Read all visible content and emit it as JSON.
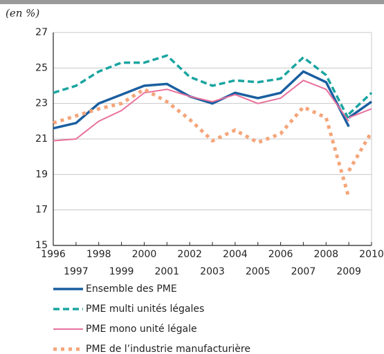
{
  "chart_data": {
    "type": "line",
    "unit_label": "(en %)",
    "x": [
      1996,
      1997,
      1998,
      1999,
      2000,
      2001,
      2002,
      2003,
      2004,
      2005,
      2006,
      2007,
      2008,
      2009,
      2009,
      2009,
      2010
    ],
    "series": [
      {
        "name": "Ensemble des PME",
        "color": "#1a5fa0",
        "dash": "solid",
        "values": [
          21.6,
          21.9,
          23.0,
          23.5,
          24.0,
          24.1,
          23.4,
          23.0,
          23.6,
          23.3,
          23.6,
          24.8,
          24.2,
          21.7,
          null,
          22.2,
          23.1
        ]
      },
      {
        "name": "PME multi unités légales",
        "color": "#1aa5a0",
        "dash": "dashed",
        "values": [
          23.6,
          24.0,
          24.8,
          25.3,
          25.3,
          25.7,
          24.5,
          24.0,
          24.3,
          24.2,
          24.4,
          25.6,
          24.6,
          22.1,
          null,
          22.4,
          23.6
        ]
      },
      {
        "name": "PME mono unité légale",
        "color": "#e8709c",
        "dash": "thin",
        "values": [
          20.9,
          21.0,
          22.0,
          22.6,
          23.6,
          23.8,
          23.4,
          23.1,
          23.5,
          23.0,
          23.3,
          24.3,
          23.8,
          22.0,
          null,
          22.2,
          22.7
        ]
      },
      {
        "name": "PME de l’industrie manufacturière",
        "color": "#f4a57a",
        "dash": "dotted",
        "values": [
          21.9,
          22.3,
          22.7,
          23.0,
          23.8,
          23.1,
          22.1,
          20.9,
          21.5,
          20.8,
          21.3,
          22.8,
          22.2,
          17.7,
          null,
          19.2,
          21.4
        ]
      }
    ],
    "xlim": [
      1996,
      2010
    ],
    "xticks": [
      1996,
      1997,
      1998,
      1999,
      2000,
      2001,
      2002,
      2003,
      2004,
      2005,
      2006,
      2007,
      2008,
      2009,
      2010
    ],
    "ylim": [
      15,
      27
    ],
    "yticks": [
      15,
      17,
      19,
      21,
      23,
      25,
      27
    ],
    "grid": true
  }
}
